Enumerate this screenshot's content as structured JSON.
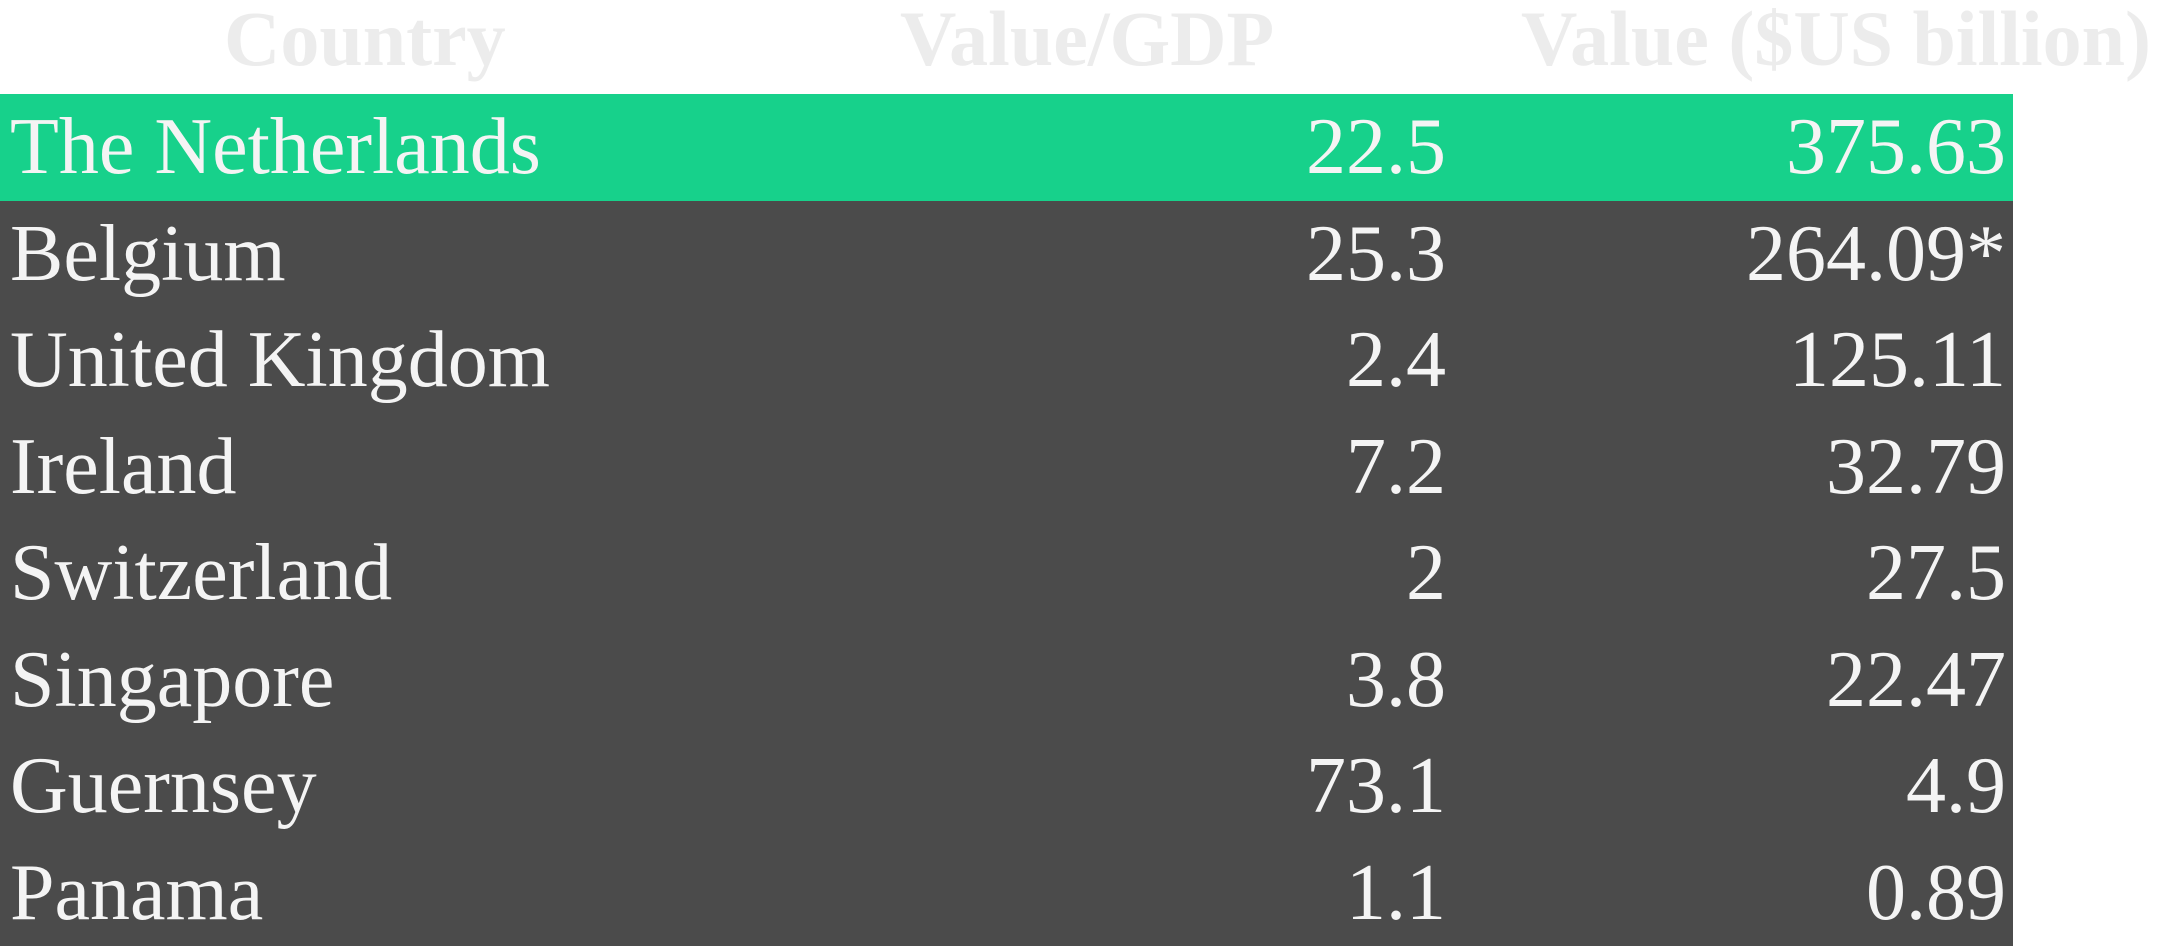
{
  "colors": {
    "highlight_row": "#17d18b",
    "table_background": "#4b4b4b",
    "header_text": "#ececec",
    "cell_text": "#f4f4f4"
  },
  "chart_data": {
    "type": "table",
    "columns": [
      "Country",
      "Value/GDP",
      "Value ($US billion)"
    ],
    "highlighted_row": 0,
    "rows": [
      {
        "country": "The Netherlands",
        "value_gdp": "22.5",
        "value_usd": "375.63"
      },
      {
        "country": "Belgium",
        "value_gdp": "25.3",
        "value_usd": "264.09*"
      },
      {
        "country": "United Kingdom",
        "value_gdp": "2.4",
        "value_usd": "125.11"
      },
      {
        "country": "Ireland",
        "value_gdp": "7.2",
        "value_usd": "32.79"
      },
      {
        "country": "Switzerland",
        "value_gdp": "2",
        "value_usd": "27.5"
      },
      {
        "country": "Singapore",
        "value_gdp": "3.8",
        "value_usd": "22.47"
      },
      {
        "country": "Guernsey",
        "value_gdp": "73.1",
        "value_usd": "4.9"
      },
      {
        "country": "Panama",
        "value_gdp": "1.1",
        "value_usd": "0.89"
      }
    ]
  }
}
